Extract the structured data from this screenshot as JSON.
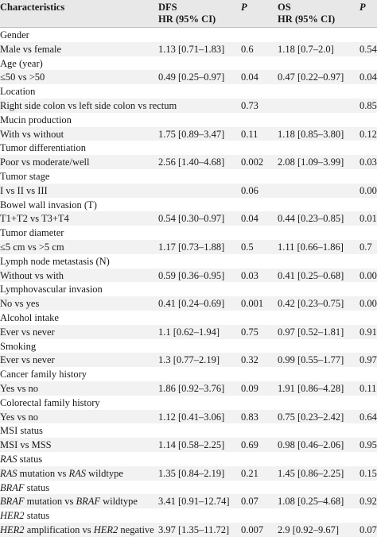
{
  "header": {
    "col0": "Characteristics",
    "dfs_line1": "DFS",
    "dfs_line2": "HR (95% CI)",
    "p1": "P",
    "os_line1": "OS",
    "os_line2": "HR (95% CI)",
    "p2": "P"
  },
  "rows": [
    {
      "label": "Gender"
    },
    {
      "label": "Male vs female",
      "dfs": "1.13 [0.71–1.83]",
      "p1": "0.6",
      "os": "1.18 [0.7–2.0]",
      "p2": "0.54"
    },
    {
      "label": "Age (year)"
    },
    {
      "label": "≤50 vs >50",
      "dfs": "0.49 [0.25–0.97]",
      "p1": "0.04",
      "os": "0.47 [0.22–0.97]",
      "p2": "0.04"
    },
    {
      "label": "Location"
    },
    {
      "label": "Right side colon vs left side colon vs rectum",
      "dfs": "",
      "p1": "0.73",
      "os": "",
      "p2": "0.85"
    },
    {
      "label": "Mucin production"
    },
    {
      "label": "With vs without",
      "dfs": "1.75 [0.89–3.47]",
      "p1": "0.11",
      "os": "1.18 [0.85–3.80]",
      "p2": "0.12"
    },
    {
      "label": "Tumor differentiation"
    },
    {
      "label": "Poor vs moderate/well",
      "dfs": "2.56 [1.40–4.68]",
      "p1": "0.002",
      "os": "2.08 [1.09–3.99]",
      "p2": "0.03"
    },
    {
      "label": "Tumor stage"
    },
    {
      "label": "I vs II vs III",
      "dfs": "",
      "p1": "0.06",
      "os": "",
      "p2": "0.001"
    },
    {
      "label": "Bowel wall invasion (T)"
    },
    {
      "label": "T1+T2 vs T3+T4",
      "dfs": "0.54 [0.30–0.97]",
      "p1": "0.04",
      "os": "0.44 [0.23–0.85]",
      "p2": "0.01"
    },
    {
      "label": "Tumor diameter"
    },
    {
      "label": "≤5 cm vs >5 cm",
      "dfs": "1.17 [0.73–1.88]",
      "p1": "0.5",
      "os": "1.11 [0.66–1.86]",
      "p2": "0.7"
    },
    {
      "label": "Lymph node metastasis (N)"
    },
    {
      "label": "Without vs with",
      "dfs": "0.59 [0.36–0.95]",
      "p1": "0.03",
      "os": "0.41 [0.25–0.68]",
      "p2": "0.001"
    },
    {
      "label": "Lymphovascular invasion"
    },
    {
      "label": "No vs yes",
      "dfs": "0.41 [0.24–0.69]",
      "p1": "0.001",
      "os": "0.42 [0.23–0.75]",
      "p2": "0.001"
    },
    {
      "label": "Alcohol intake"
    },
    {
      "label": "Ever vs never",
      "dfs": "1.1 [0.62–1.94]",
      "p1": "0.75",
      "os": "0.97 [0.52–1.81]",
      "p2": "0.91"
    },
    {
      "label": "Smoking"
    },
    {
      "label": "Ever vs never",
      "dfs": "1.3 [0.77–2.19]",
      "p1": "0.32",
      "os": "0.99 [0.55–1.77]",
      "p2": "0.97"
    },
    {
      "label": "Cancer family history"
    },
    {
      "label": "Yes vs no",
      "dfs": "1.86 [0.92–3.76]",
      "p1": "0.09",
      "os": "1.91 [0.86–4.28]",
      "p2": "0.11"
    },
    {
      "label": "Colorectal family history"
    },
    {
      "label": "Yes vs no",
      "dfs": "1.12 [0.41–3.06]",
      "p1": "0.83",
      "os": "0.75 [0.23–2.42]",
      "p2": "0.64"
    },
    {
      "label": "MSI status"
    },
    {
      "label": "MSI vs MSS",
      "dfs": "1.14 [0.58–2.25]",
      "p1": "0.69",
      "os": "0.98 [0.46–2.06]",
      "p2": "0.95"
    },
    {
      "label_it": "RAS",
      "label_rest": " status"
    },
    {
      "label_it": "RAS",
      "label_rest": " mutation vs ",
      "label_it2": "RAS",
      "label_rest2": " wildtype",
      "dfs": "1.35 [0.84–2.19]",
      "p1": "0.21",
      "os": "1.45 [0.86–2.25]",
      "p2": "0.15"
    },
    {
      "label_it": "BRAF",
      "label_rest": " status"
    },
    {
      "label_it": "BRAF",
      "label_rest": " mutation vs ",
      "label_it2": "BRAF",
      "label_rest2": " wildtype",
      "dfs": "3.41 [0.91–12.74]",
      "p1": "0.07",
      "os": "1.08 [0.25–4.68]",
      "p2": "0.92"
    },
    {
      "label_it": "HER2",
      "label_rest": " status"
    },
    {
      "label_it": "HER2",
      "label_rest": " amplification vs ",
      "label_it2": "HER2",
      "label_rest2": " negative",
      "dfs": "3.97 [1.35–11.72]",
      "p1": "0.007",
      "os": "2.9 [0.92–9.67]",
      "p2": "0.07"
    }
  ]
}
